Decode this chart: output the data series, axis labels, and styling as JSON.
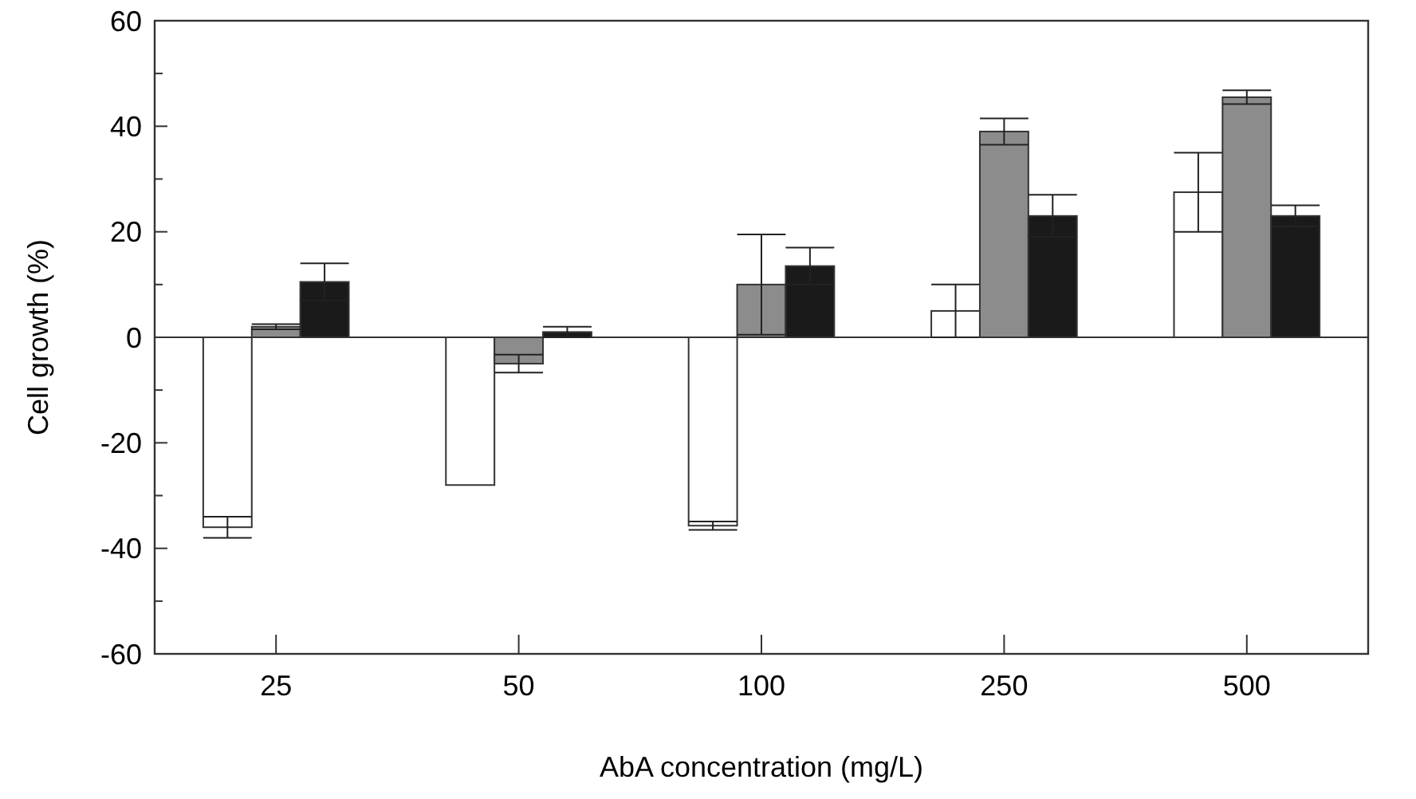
{
  "chart_data": {
    "type": "bar",
    "xlabel": "AbA concentration  (mg/L)",
    "ylabel": "Cell growth  (%)",
    "categories": [
      "25",
      "50",
      "100",
      "250",
      "500"
    ],
    "series": [
      {
        "color": "#ffffff",
        "values": [
          -36,
          -28,
          -35.7,
          5,
          27.5
        ],
        "errors": [
          2,
          null,
          0.8,
          5,
          7.5
        ]
      },
      {
        "color": "#8c8c8c",
        "values": [
          2,
          -5,
          10,
          39,
          45.5
        ],
        "errors": [
          0.5,
          1.7,
          9.5,
          2.5,
          1.3
        ]
      },
      {
        "color": "#1a1a1a",
        "values": [
          10.5,
          1,
          13.5,
          23,
          23
        ],
        "errors": [
          3.5,
          1,
          3.5,
          4,
          2
        ]
      }
    ],
    "ylim": [
      -60,
      60
    ],
    "yticks": [
      -60,
      {
        "value": -50,
        "label": null
      },
      -40,
      {
        "value": -30,
        "label": null
      },
      -20,
      {
        "value": -10,
        "label": null
      },
      0,
      {
        "value": 10,
        "label": null
      },
      20,
      {
        "value": 30,
        "label": null
      },
      40,
      {
        "value": 50,
        "label": null
      },
      60
    ],
    "ref_lines": [
      {
        "axis": "y",
        "value": 0,
        "color": "#333333"
      }
    ]
  }
}
